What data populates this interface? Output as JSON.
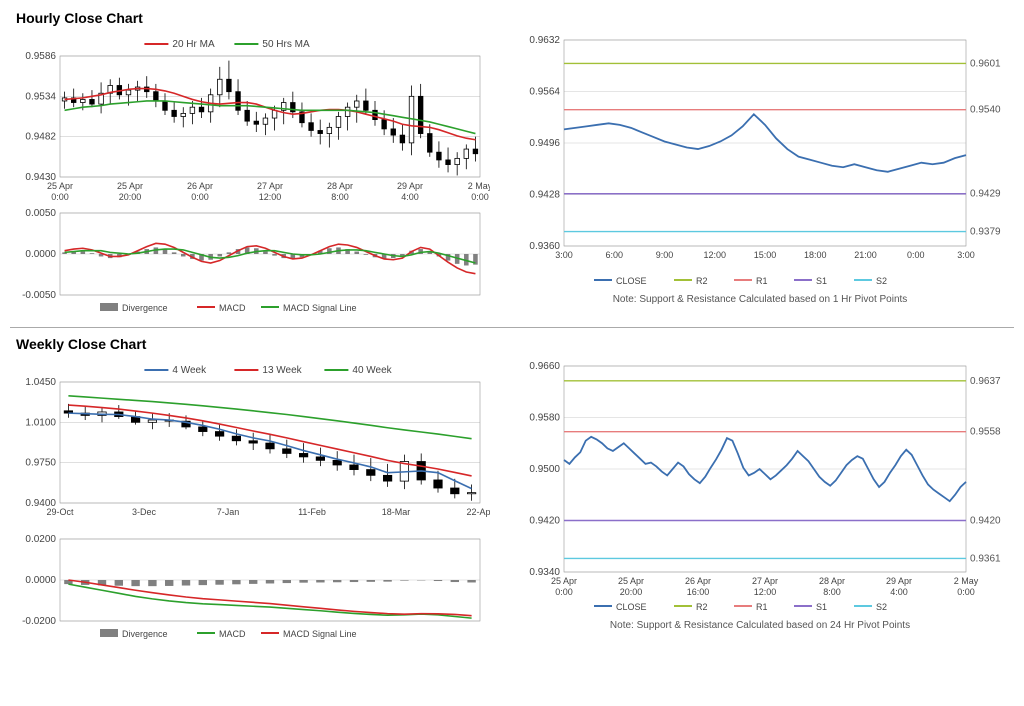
{
  "hourly": {
    "title": "Hourly Close Chart",
    "price": {
      "ylim": [
        0.943,
        0.9586
      ],
      "yticks": [
        0.943,
        0.9482,
        0.9534,
        0.9586
      ],
      "xlabels": [
        "25 Apr\n0:00",
        "25 Apr\n20:00",
        "26 Apr\n0:00",
        "27 Apr\n12:00",
        "28 Apr\n8:00",
        "29 Apr\n4:00",
        "2 May\n0:00"
      ],
      "legend": [
        {
          "label": "20 Hr MA",
          "color": "#d62728"
        },
        {
          "label": "50 Hrs MA",
          "color": "#2ca02c"
        }
      ],
      "candle_color": "#000000",
      "ma20_color": "#d62728",
      "ma50_color": "#2ca02c",
      "grid_color": "#bbbbbb",
      "candles": [
        [
          0.9528,
          0.954,
          0.9518,
          0.9532
        ],
        [
          0.9532,
          0.9544,
          0.952,
          0.9526
        ],
        [
          0.9526,
          0.9538,
          0.9516,
          0.953
        ],
        [
          0.953,
          0.9542,
          0.952,
          0.9524
        ],
        [
          0.9524,
          0.9552,
          0.9512,
          0.9538
        ],
        [
          0.9538,
          0.9556,
          0.9524,
          0.9548
        ],
        [
          0.9548,
          0.9558,
          0.953,
          0.9536
        ],
        [
          0.9536,
          0.955,
          0.9522,
          0.9542
        ],
        [
          0.9542,
          0.9554,
          0.9528,
          0.9546
        ],
        [
          0.9546,
          0.956,
          0.9532,
          0.954
        ],
        [
          0.954,
          0.955,
          0.952,
          0.9528
        ],
        [
          0.9528,
          0.9538,
          0.951,
          0.9516
        ],
        [
          0.9516,
          0.9526,
          0.95,
          0.9508
        ],
        [
          0.9508,
          0.952,
          0.9494,
          0.9512
        ],
        [
          0.9512,
          0.9528,
          0.9498,
          0.952
        ],
        [
          0.952,
          0.9532,
          0.9506,
          0.9514
        ],
        [
          0.9514,
          0.9544,
          0.95,
          0.9536
        ],
        [
          0.9536,
          0.9572,
          0.952,
          0.9556
        ],
        [
          0.9556,
          0.958,
          0.953,
          0.954
        ],
        [
          0.954,
          0.9556,
          0.951,
          0.9516
        ],
        [
          0.9516,
          0.9528,
          0.9496,
          0.9502
        ],
        [
          0.9502,
          0.9514,
          0.9488,
          0.9498
        ],
        [
          0.9498,
          0.9512,
          0.9484,
          0.9506
        ],
        [
          0.9506,
          0.9522,
          0.949,
          0.9516
        ],
        [
          0.9516,
          0.9532,
          0.9498,
          0.9526
        ],
        [
          0.9526,
          0.954,
          0.9506,
          0.9514
        ],
        [
          0.9514,
          0.9526,
          0.9494,
          0.95
        ],
        [
          0.95,
          0.9512,
          0.9482,
          0.949
        ],
        [
          0.949,
          0.9504,
          0.9472,
          0.9486
        ],
        [
          0.9486,
          0.95,
          0.9468,
          0.9494
        ],
        [
          0.9494,
          0.9514,
          0.9478,
          0.9508
        ],
        [
          0.9508,
          0.9526,
          0.949,
          0.952
        ],
        [
          0.952,
          0.9536,
          0.95,
          0.9528
        ],
        [
          0.9528,
          0.9544,
          0.951,
          0.9516
        ],
        [
          0.9516,
          0.9528,
          0.9496,
          0.9504
        ],
        [
          0.9504,
          0.9516,
          0.9484,
          0.9492
        ],
        [
          0.9492,
          0.9506,
          0.9474,
          0.9484
        ],
        [
          0.9484,
          0.9498,
          0.9464,
          0.9474
        ],
        [
          0.9474,
          0.9548,
          0.9458,
          0.9534
        ],
        [
          0.9534,
          0.955,
          0.948,
          0.9486
        ],
        [
          0.9486,
          0.9498,
          0.9456,
          0.9462
        ],
        [
          0.9462,
          0.9476,
          0.9442,
          0.9452
        ],
        [
          0.9452,
          0.9468,
          0.9436,
          0.9446
        ],
        [
          0.9446,
          0.9462,
          0.9432,
          0.9454
        ],
        [
          0.9454,
          0.9472,
          0.944,
          0.9466
        ],
        [
          0.9466,
          0.9482,
          0.945,
          0.946
        ]
      ],
      "ma20": [
        0.953,
        0.9531,
        0.9532,
        0.9534,
        0.9536,
        0.9539,
        0.9541,
        0.9543,
        0.9544,
        0.9544,
        0.9543,
        0.9541,
        0.9538,
        0.9534,
        0.953,
        0.9527,
        0.9525,
        0.9524,
        0.9525,
        0.9526,
        0.9526,
        0.9524,
        0.952,
        0.9516,
        0.9513,
        0.9511,
        0.9512,
        0.9514,
        0.9516,
        0.9517,
        0.9517,
        0.9516,
        0.9514,
        0.9511,
        0.9508,
        0.9505,
        0.9502,
        0.9498,
        0.9496,
        0.9495,
        0.9494,
        0.9491,
        0.9487,
        0.9483,
        0.948,
        0.9478
      ],
      "ma50": [
        0.9516,
        0.9518,
        0.952,
        0.9521,
        0.9522,
        0.9524,
        0.9525,
        0.9526,
        0.9527,
        0.9528,
        0.9528,
        0.9528,
        0.9527,
        0.9526,
        0.9525,
        0.9524,
        0.9523,
        0.9522,
        0.9522,
        0.9522,
        0.9522,
        0.9521,
        0.952,
        0.9519,
        0.9518,
        0.9517,
        0.9516,
        0.9516,
        0.9516,
        0.9516,
        0.9516,
        0.9516,
        0.9515,
        0.9514,
        0.9513,
        0.9511,
        0.9509,
        0.9507,
        0.9505,
        0.9503,
        0.9501,
        0.9498,
        0.9495,
        0.9492,
        0.9489,
        0.9486
      ]
    },
    "macd": {
      "ylim": [
        -0.005,
        0.005
      ],
      "yticks": [
        -0.005,
        0.0,
        0.005
      ],
      "legend": [
        {
          "label": "Divergence",
          "color": "#808080",
          "type": "bar"
        },
        {
          "label": "MACD",
          "color": "#d62728",
          "type": "line"
        },
        {
          "label": "MACD Signal Line",
          "color": "#2ca02c",
          "type": "line"
        }
      ],
      "divergence": [
        0.0002,
        0.0003,
        0.0003,
        0.0001,
        -0.0003,
        -0.0005,
        -0.0004,
        -0.0001,
        0.0003,
        0.0006,
        0.0008,
        0.0006,
        0.0002,
        -0.0003,
        -0.0006,
        -0.0008,
        -0.0007,
        -0.0003,
        0.0002,
        0.0006,
        0.0008,
        0.0007,
        0.0003,
        -0.0002,
        -0.0005,
        -0.0006,
        -0.0004,
        0.0,
        0.0004,
        0.0007,
        0.0008,
        0.0006,
        0.0003,
        -0.0001,
        -0.0004,
        -0.0006,
        -0.0005,
        -0.0002,
        0.0004,
        0.0006,
        0.0003,
        -0.0003,
        -0.0008,
        -0.0012,
        -0.0014,
        -0.0013
      ],
      "macd": [
        0.0004,
        0.0006,
        0.0007,
        0.0005,
        0.0001,
        -0.0003,
        -0.0003,
        -0.0001,
        0.0004,
        0.0009,
        0.0013,
        0.0012,
        0.0008,
        0.0002,
        -0.0004,
        -0.0009,
        -0.0011,
        -0.0008,
        -0.0002,
        0.0004,
        0.0009,
        0.001,
        0.0007,
        0.0002,
        -0.0003,
        -0.0006,
        -0.0005,
        -0.0001,
        0.0004,
        0.0009,
        0.0012,
        0.0011,
        0.0008,
        0.0003,
        -0.0002,
        -0.0006,
        -0.0007,
        -0.0005,
        0.0003,
        0.0008,
        0.0006,
        -0.0002,
        -0.001,
        -0.0017,
        -0.0022,
        -0.0024
      ],
      "signal": [
        0.0002,
        0.0003,
        0.0004,
        0.0004,
        0.0004,
        0.0002,
        0.0001,
        0.0,
        0.0001,
        0.0003,
        0.0005,
        0.0006,
        0.0006,
        0.0005,
        0.0002,
        -0.0001,
        -0.0004,
        -0.0005,
        -0.0004,
        -0.0002,
        0.0001,
        0.0003,
        0.0004,
        0.0004,
        0.0002,
        0.0,
        -0.0001,
        -0.0001,
        0.0,
        0.0002,
        0.0004,
        0.0005,
        0.0005,
        0.0004,
        0.0002,
        0.0,
        -0.0002,
        -0.0003,
        -0.0001,
        0.0002,
        0.0003,
        0.0001,
        -0.0002,
        -0.0005,
        -0.0008,
        -0.0011
      ]
    },
    "sr": {
      "ylim": [
        0.936,
        0.9632
      ],
      "yticks": [
        0.936,
        0.9428,
        0.9496,
        0.9564,
        0.9632
      ],
      "xlabels": [
        "3:00",
        "6:00",
        "9:00",
        "12:00",
        "15:00",
        "18:00",
        "21:00",
        "0:00",
        "3:00"
      ],
      "levels": [
        {
          "label": "R2",
          "value": 0.9601,
          "color": "#a2c037"
        },
        {
          "label": "R1",
          "value": 0.954,
          "color": "#e77c7c"
        },
        {
          "label": "S1",
          "value": 0.9429,
          "color": "#8b6fc9"
        },
        {
          "label": "S2",
          "value": 0.9379,
          "color": "#5dc9e0"
        }
      ],
      "close_color": "#3b6fb0",
      "close": [
        0.9514,
        0.9516,
        0.9518,
        0.952,
        0.9522,
        0.952,
        0.9516,
        0.951,
        0.9504,
        0.9498,
        0.9494,
        0.949,
        0.9488,
        0.9492,
        0.9498,
        0.9506,
        0.9518,
        0.9534,
        0.952,
        0.9502,
        0.9488,
        0.9478,
        0.9474,
        0.947,
        0.9466,
        0.9464,
        0.9468,
        0.9464,
        0.946,
        0.9458,
        0.9462,
        0.9466,
        0.947,
        0.9468,
        0.947,
        0.9476,
        0.948
      ],
      "note": "Note: Support & Resistance Calculated based on 1 Hr Pivot Points",
      "legend_close": "CLOSE"
    }
  },
  "weekly": {
    "title": "Weekly Close Chart",
    "price": {
      "ylim": [
        0.94,
        1.045
      ],
      "yticks": [
        0.94,
        0.975,
        1.01,
        1.045
      ],
      "xlabels": [
        "29-Oct",
        "3-Dec",
        "7-Jan",
        "11-Feb",
        "18-Mar",
        "22-Apr"
      ],
      "legend": [
        {
          "label": "4 Week",
          "color": "#3b6fb0"
        },
        {
          "label": "13 Week",
          "color": "#d62728"
        },
        {
          "label": "40 Week",
          "color": "#2ca02c"
        }
      ],
      "candle_color": "#000000",
      "candles": [
        [
          1.02,
          1.026,
          1.014,
          1.018
        ],
        [
          1.018,
          1.024,
          1.012,
          1.016
        ],
        [
          1.016,
          1.023,
          1.01,
          1.019
        ],
        [
          1.019,
          1.025,
          1.013,
          1.015
        ],
        [
          1.015,
          1.02,
          1.008,
          1.01
        ],
        [
          1.01,
          1.018,
          1.004,
          1.012
        ],
        [
          1.012,
          1.018,
          1.006,
          1.011
        ],
        [
          1.011,
          1.016,
          1.004,
          1.006
        ],
        [
          1.006,
          1.012,
          0.998,
          1.002
        ],
        [
          1.002,
          1.008,
          0.994,
          0.998
        ],
        [
          0.998,
          1.004,
          0.99,
          0.994
        ],
        [
          0.994,
          1.001,
          0.986,
          0.992
        ],
        [
          0.992,
          0.999,
          0.983,
          0.987
        ],
        [
          0.987,
          0.995,
          0.979,
          0.983
        ],
        [
          0.983,
          0.992,
          0.975,
          0.98
        ],
        [
          0.98,
          0.988,
          0.972,
          0.977
        ],
        [
          0.977,
          0.985,
          0.968,
          0.973
        ],
        [
          0.973,
          0.982,
          0.964,
          0.969
        ],
        [
          0.969,
          0.979,
          0.959,
          0.964
        ],
        [
          0.964,
          0.974,
          0.954,
          0.959
        ],
        [
          0.959,
          0.982,
          0.952,
          0.976
        ],
        [
          0.976,
          0.983,
          0.956,
          0.96
        ],
        [
          0.96,
          0.968,
          0.949,
          0.953
        ],
        [
          0.953,
          0.961,
          0.944,
          0.948
        ],
        [
          0.948,
          0.956,
          0.942,
          0.949
        ]
      ],
      "ma4": [
        1.018,
        1.0175,
        1.017,
        1.0168,
        1.015,
        1.0128,
        1.012,
        1.01,
        1.0073,
        1.004,
        1.0,
        0.9965,
        0.9938,
        0.9898,
        0.9855,
        0.9818,
        0.978,
        0.9748,
        0.9713,
        0.9663,
        0.967,
        0.9678,
        0.9663,
        0.9593,
        0.9525
      ],
      "ma13": [
        1.025,
        1.024,
        1.0228,
        1.0215,
        1.0198,
        1.018,
        1.016,
        1.0138,
        1.0113,
        1.0085,
        1.0055,
        1.0025,
        0.9996,
        0.9965,
        0.9932,
        0.99,
        0.9868,
        0.9836,
        0.9804,
        0.977,
        0.9742,
        0.972,
        0.9695,
        0.9665,
        0.9635
      ],
      "ma40": [
        1.033,
        1.032,
        1.031,
        1.03,
        1.029,
        1.028,
        1.0268,
        1.0256,
        1.0243,
        1.0229,
        1.0215,
        1.02,
        1.0184,
        1.0168,
        1.015,
        1.0132,
        1.0113,
        1.0094,
        1.0074,
        1.0053,
        1.0034,
        1.0016,
        0.9998,
        0.9978,
        0.9958
      ]
    },
    "macd": {
      "ylim": [
        -0.02,
        0.02
      ],
      "yticks": [
        -0.02,
        0.0,
        0.02
      ],
      "legend": [
        {
          "label": "Divergence",
          "color": "#808080",
          "type": "bar"
        },
        {
          "label": "MACD",
          "color": "#2ca02c",
          "type": "line"
        },
        {
          "label": "MACD Signal Line",
          "color": "#d62728",
          "type": "line"
        }
      ],
      "divergence": [
        -0.002,
        -0.0024,
        -0.0026,
        -0.0028,
        -0.003,
        -0.003,
        -0.0029,
        -0.0027,
        -0.0025,
        -0.0023,
        -0.0021,
        -0.0019,
        -0.0017,
        -0.0015,
        -0.0013,
        -0.0012,
        -0.0011,
        -0.001,
        -0.0009,
        -0.0008,
        -0.0003,
        -0.0002,
        -0.0005,
        -0.001,
        -0.0012
      ],
      "macd": [
        -0.002,
        -0.0035,
        -0.005,
        -0.0065,
        -0.008,
        -0.0092,
        -0.0102,
        -0.011,
        -0.0116,
        -0.012,
        -0.0124,
        -0.0128,
        -0.0132,
        -0.0138,
        -0.0144,
        -0.015,
        -0.0157,
        -0.0163,
        -0.0168,
        -0.0172,
        -0.017,
        -0.0166,
        -0.017,
        -0.0178,
        -0.0186
      ],
      "signal": [
        0.0,
        -0.0011,
        -0.0024,
        -0.0037,
        -0.005,
        -0.0062,
        -0.0073,
        -0.0083,
        -0.0091,
        -0.0097,
        -0.0103,
        -0.0109,
        -0.0115,
        -0.0123,
        -0.0131,
        -0.0138,
        -0.0146,
        -0.0153,
        -0.0159,
        -0.0164,
        -0.0167,
        -0.0164,
        -0.0165,
        -0.0168,
        -0.0174
      ]
    },
    "sr": {
      "ylim": [
        0.934,
        0.966
      ],
      "yticks": [
        0.934,
        0.942,
        0.95,
        0.958,
        0.966
      ],
      "xlabels": [
        "25 Apr\n0:00",
        "25 Apr\n20:00",
        "26 Apr\n16:00",
        "27 Apr\n12:00",
        "28 Apr\n8:00",
        "29 Apr\n4:00",
        "2 May\n0:00"
      ],
      "levels": [
        {
          "label": "R2",
          "value": 0.9637,
          "color": "#a2c037"
        },
        {
          "label": "R1",
          "value": 0.9558,
          "color": "#e77c7c"
        },
        {
          "label": "S1",
          "value": 0.942,
          "color": "#8b6fc9"
        },
        {
          "label": "S2",
          "value": 0.9361,
          "color": "#5dc9e0"
        }
      ],
      "close_color": "#3b6fb0",
      "close": [
        0.9514,
        0.9508,
        0.9518,
        0.9526,
        0.9544,
        0.955,
        0.9546,
        0.954,
        0.9532,
        0.9528,
        0.9534,
        0.954,
        0.9532,
        0.9524,
        0.9516,
        0.9508,
        0.951,
        0.9504,
        0.9496,
        0.949,
        0.95,
        0.951,
        0.9504,
        0.9492,
        0.9484,
        0.9478,
        0.9488,
        0.9502,
        0.9515,
        0.953,
        0.9548,
        0.9544,
        0.9524,
        0.9502,
        0.949,
        0.9494,
        0.95,
        0.9492,
        0.9484,
        0.949,
        0.9498,
        0.9506,
        0.9516,
        0.9528,
        0.952,
        0.9512,
        0.95,
        0.9488,
        0.948,
        0.9474,
        0.9482,
        0.9494,
        0.9506,
        0.9514,
        0.952,
        0.9516,
        0.95,
        0.9484,
        0.9472,
        0.948,
        0.9494,
        0.9506,
        0.952,
        0.953,
        0.9522,
        0.9506,
        0.949,
        0.9476,
        0.9468,
        0.9462,
        0.9456,
        0.945,
        0.946,
        0.9472,
        0.948
      ],
      "note": "Note: Support & Resistance Calculated based on 24 Hr Pivot Points",
      "legend_close": "CLOSE"
    }
  },
  "style": {
    "grid_color": "#cccccc",
    "axis_color": "#888888",
    "font_size_axis": 10,
    "plot_bg": "#ffffff"
  }
}
